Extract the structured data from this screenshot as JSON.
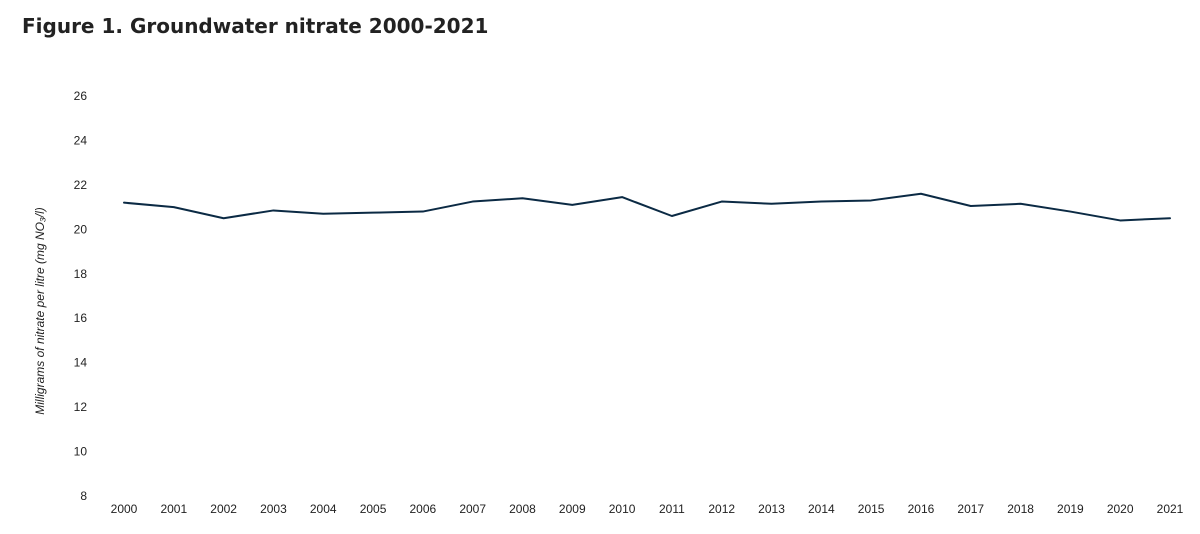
{
  "title": "Figure 1. Groundwater nitrate 2000-2021",
  "chart_data": {
    "type": "line",
    "title": "Figure 1. Groundwater nitrate 2000-2021",
    "xlabel": "",
    "ylabel": "Milligrams of nitrate per litre (mg NO₃/l)",
    "ylim": [
      8,
      26
    ],
    "yticks": [
      "8",
      "10",
      "12",
      "14",
      "16",
      "18",
      "20",
      "22",
      "24",
      "26"
    ],
    "grid": false,
    "legend": "none",
    "categories": [
      "2000",
      "2001",
      "2002",
      "2003",
      "2004",
      "2005",
      "2006",
      "2007",
      "2008",
      "2009",
      "2010",
      "2011",
      "2012",
      "2013",
      "2014",
      "2015",
      "2016",
      "2017",
      "2018",
      "2019",
      "2020",
      "2021"
    ],
    "series": [
      {
        "color": "#0b2a44",
        "values": [
          21.2,
          21.0,
          20.5,
          20.85,
          20.7,
          20.75,
          20.8,
          21.25,
          21.4,
          21.1,
          21.45,
          20.6,
          21.25,
          21.15,
          21.25,
          21.3,
          21.6,
          21.05,
          21.15,
          20.8,
          20.4,
          20.5
        ]
      }
    ]
  }
}
